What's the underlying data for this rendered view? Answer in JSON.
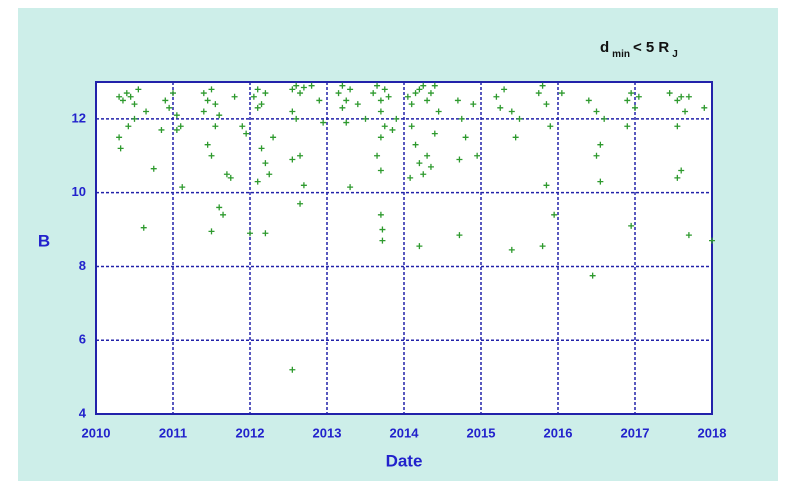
{
  "chart_data": {
    "type": "scatter",
    "title": [
      "d",
      "min",
      "< 5 R",
      "J"
    ],
    "title_subscript": [
      false,
      true,
      false,
      true
    ],
    "x_label": "Date",
    "y_label": "B",
    "color": "#2e9a2e",
    "xlim": [
      2010,
      2018
    ],
    "ylim": [
      4,
      13
    ],
    "xticks": [
      2010,
      2011,
      2012,
      2013,
      2014,
      2015,
      2016,
      2017,
      2018
    ],
    "yticks": [
      4,
      6,
      8,
      10,
      12
    ],
    "grid": true,
    "x": [
      2010.3,
      2010.35,
      2010.4,
      2010.45,
      2010.5,
      2010.55,
      2010.3,
      2010.32,
      2010.42,
      2010.5,
      2010.62,
      2010.65,
      2010.75,
      2010.9,
      2010.95,
      2011.0,
      2011.05,
      2011.1,
      2011.12,
      2011.05,
      2010.85,
      2011.4,
      2011.45,
      2011.5,
      2011.55,
      2011.45,
      2011.5,
      2011.55,
      2011.6,
      2011.65,
      2011.5,
      2011.7,
      2011.75,
      2011.8,
      2011.9,
      2011.95,
      2012.0,
      2011.6,
      2011.4,
      2012.05,
      2012.1,
      2012.15,
      2012.2,
      2012.1,
      2012.15,
      2012.2,
      2012.25,
      2012.1,
      2012.2,
      2012.3,
      2012.55,
      2012.6,
      2012.65,
      2012.7,
      2012.55,
      2012.6,
      2012.65,
      2012.55,
      2012.7,
      2012.65,
      2012.55,
      2012.8,
      2012.9,
      2012.95,
      2013.15,
      2013.2,
      2013.25,
      2013.3,
      2013.2,
      2013.25,
      2013.3,
      2013.4,
      2013.5,
      2013.6,
      2013.65,
      2013.7,
      2013.75,
      2013.7,
      2013.7,
      2013.65,
      2013.7,
      2013.75,
      2013.7,
      2013.72,
      2013.72,
      2013.8,
      2013.85,
      2013.9,
      2014.05,
      2014.1,
      2014.15,
      2014.2,
      2014.25,
      2014.3,
      2014.35,
      2014.4,
      2014.1,
      2014.15,
      2014.2,
      2014.25,
      2014.3,
      2014.35,
      2014.08,
      2014.2,
      2014.4,
      2014.45,
      2014.7,
      2014.75,
      2014.8,
      2014.72,
      2014.72,
      2014.9,
      2014.95,
      2015.2,
      2015.25,
      2015.3,
      2015.4,
      2015.45,
      2015.4,
      2015.5,
      2015.75,
      2015.8,
      2015.85,
      2015.9,
      2015.85,
      2015.95,
      2015.8,
      2016.05,
      2016.4,
      2016.5,
      2016.55,
      2016.5,
      2016.55,
      2016.45,
      2016.6,
      2016.9,
      2016.95,
      2016.9,
      2016.95,
      2017.0,
      2017.05,
      2017.45,
      2017.55,
      2017.6,
      2017.65,
      2017.55,
      2017.6,
      2017.55,
      2017.7,
      2017.7,
      2017.9,
      2018.0
    ],
    "values": [
      12.6,
      12.5,
      12.7,
      12.6,
      12.4,
      12.8,
      11.5,
      11.2,
      11.8,
      12.0,
      9.05,
      12.2,
      10.65,
      12.5,
      12.3,
      12.7,
      12.1,
      11.8,
      10.15,
      11.7,
      11.7,
      12.7,
      12.5,
      12.8,
      12.4,
      11.3,
      11.0,
      11.8,
      9.6,
      9.4,
      8.95,
      10.5,
      10.4,
      12.6,
      11.8,
      11.6,
      8.9,
      12.1,
      12.2,
      12.6,
      12.8,
      12.4,
      12.7,
      12.3,
      11.2,
      10.8,
      10.5,
      10.3,
      8.9,
      11.5,
      12.8,
      12.9,
      12.7,
      12.85,
      12.2,
      12.0,
      11.0,
      10.9,
      10.2,
      9.7,
      5.2,
      12.9,
      12.5,
      11.9,
      12.7,
      12.9,
      12.5,
      12.8,
      12.3,
      11.9,
      10.15,
      12.4,
      12.0,
      12.7,
      12.9,
      12.5,
      12.8,
      12.2,
      11.5,
      11.0,
      10.6,
      11.8,
      9.4,
      9.0,
      8.7,
      12.6,
      11.7,
      12.0,
      12.6,
      12.4,
      12.7,
      12.8,
      12.9,
      12.5,
      12.7,
      12.9,
      11.8,
      11.3,
      10.8,
      10.5,
      11.0,
      10.7,
      10.4,
      8.55,
      11.6,
      12.2,
      12.5,
      12.0,
      11.5,
      10.9,
      8.85,
      12.4,
      11.0,
      12.6,
      12.3,
      12.8,
      12.2,
      11.5,
      8.45,
      12.0,
      12.7,
      12.9,
      12.4,
      11.8,
      10.2,
      9.4,
      8.55,
      12.7,
      12.5,
      12.2,
      11.3,
      11.0,
      10.3,
      7.75,
      12.0,
      12.5,
      12.7,
      11.8,
      9.1,
      12.3,
      12.6,
      12.7,
      12.5,
      12.6,
      12.2,
      11.8,
      10.6,
      10.4,
      8.85,
      12.6,
      12.3,
      8.7
    ]
  }
}
